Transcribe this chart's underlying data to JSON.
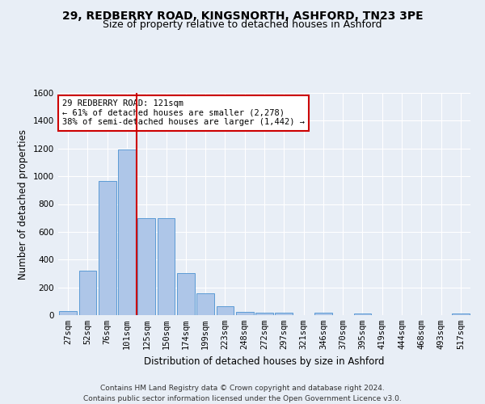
{
  "title_line1": "29, REDBERRY ROAD, KINGSNORTH, ASHFORD, TN23 3PE",
  "title_line2": "Size of property relative to detached houses in Ashford",
  "xlabel": "Distribution of detached houses by size in Ashford",
  "ylabel": "Number of detached properties",
  "categories": [
    "27sqm",
    "52sqm",
    "76sqm",
    "101sqm",
    "125sqm",
    "150sqm",
    "174sqm",
    "199sqm",
    "223sqm",
    "248sqm",
    "272sqm",
    "297sqm",
    "321sqm",
    "346sqm",
    "370sqm",
    "395sqm",
    "419sqm",
    "444sqm",
    "468sqm",
    "493sqm",
    "517sqm"
  ],
  "values": [
    30,
    320,
    965,
    1190,
    700,
    700,
    300,
    155,
    65,
    25,
    20,
    20,
    0,
    15,
    0,
    12,
    0,
    0,
    0,
    0,
    12
  ],
  "bar_color": "#aec6e8",
  "bar_edge_color": "#5b9bd5",
  "vline_color": "#cc0000",
  "vline_x_index": 3.5,
  "annotation_text": "29 REDBERRY ROAD: 121sqm\n← 61% of detached houses are smaller (2,278)\n38% of semi-detached houses are larger (1,442) →",
  "annotation_box_facecolor": "#ffffff",
  "annotation_box_edgecolor": "#cc0000",
  "ylim": [
    0,
    1600
  ],
  "yticks": [
    0,
    200,
    400,
    600,
    800,
    1000,
    1200,
    1400,
    1600
  ],
  "bg_color": "#e8eef6",
  "plot_bg_color": "#e8eef6",
  "grid_color": "#ffffff",
  "footer_text": "Contains HM Land Registry data © Crown copyright and database right 2024.\nContains public sector information licensed under the Open Government Licence v3.0.",
  "title_fontsize": 10,
  "subtitle_fontsize": 9,
  "axis_label_fontsize": 8.5,
  "tick_fontsize": 7.5,
  "annotation_fontsize": 7.5,
  "footer_fontsize": 6.5
}
